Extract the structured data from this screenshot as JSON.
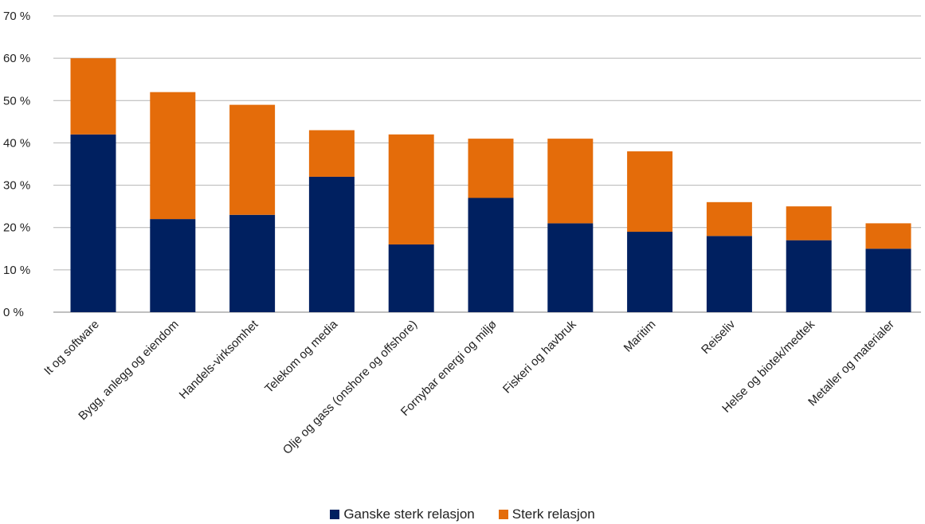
{
  "chart_data": {
    "type": "bar",
    "stacked": true,
    "categories": [
      "It og software",
      "Bygg, anlegg og eiendom",
      "Handels-virksomhet",
      "Telekom og media",
      "Olje og gass (onshore og offshore)",
      "Fornybar energi og miljø",
      "Fiskeri og havbruk",
      "Maritim",
      "Reiseliv",
      "Helse og biotek/medtek",
      "Metaller og materialer"
    ],
    "series": [
      {
        "name": "Ganske sterk relasjon",
        "color": "#002060",
        "values": [
          42,
          22,
          23,
          32,
          16,
          27,
          21,
          19,
          18,
          17,
          15
        ]
      },
      {
        "name": "Sterk relasjon",
        "color": "#E46C0A",
        "values": [
          18,
          30,
          26,
          11,
          26,
          14,
          20,
          19,
          8,
          8,
          6
        ]
      }
    ],
    "ylim": [
      0,
      70
    ],
    "yticks": [
      0,
      10,
      20,
      30,
      40,
      50,
      60,
      70
    ],
    "ytick_labels": [
      "0 %",
      "10 %",
      "20 %",
      "30 %",
      "40 %",
      "50 %",
      "60 %",
      "70 %"
    ],
    "grid": true,
    "legend_position": "bottom"
  }
}
